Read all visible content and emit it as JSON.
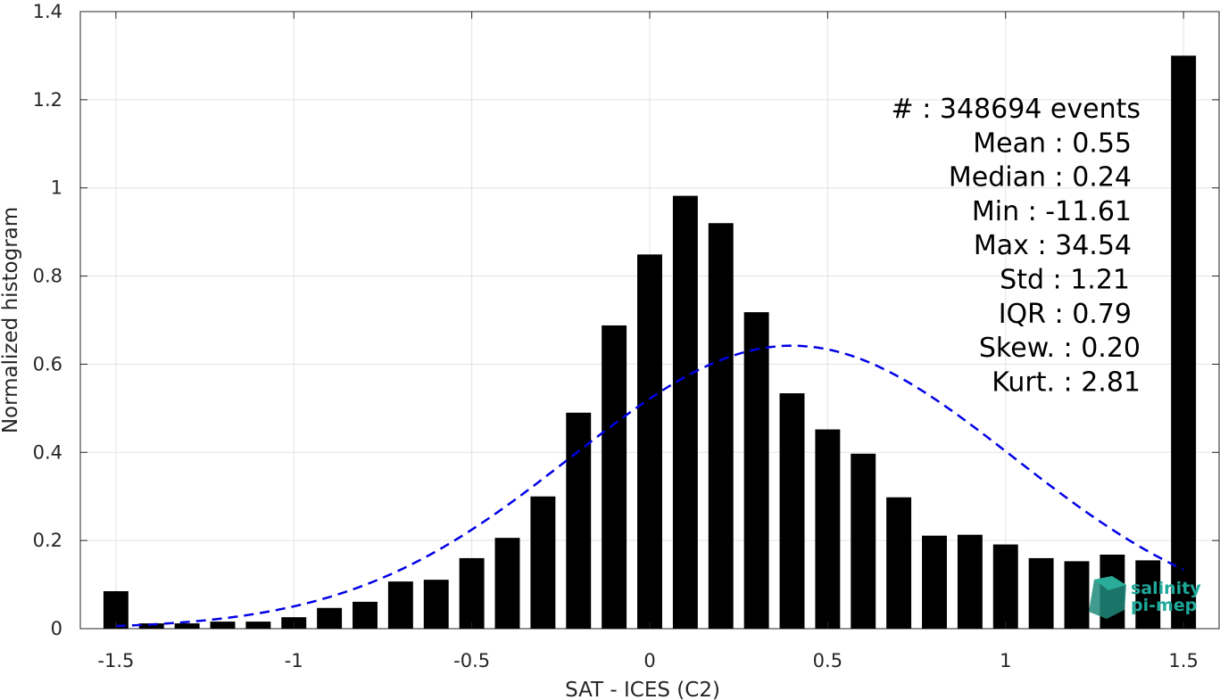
{
  "chart_data": {
    "type": "bar",
    "xlabel": "SAT - ICES (C2)",
    "ylabel": "Normalized histogram",
    "xlim": [
      -1.6,
      1.6
    ],
    "ylim": [
      0,
      1.4
    ],
    "xticks": [
      -1.5,
      -1,
      -0.5,
      0,
      0.5,
      1,
      1.5
    ],
    "xtick_labels": [
      "-1.5",
      "-1",
      "-0.5",
      "0",
      "0.5",
      "1",
      "1.5"
    ],
    "yticks": [
      0,
      0.2,
      0.4,
      0.6,
      0.8,
      1,
      1.2,
      1.4
    ],
    "ytick_labels": [
      "0",
      "0.2",
      "0.4",
      "0.6",
      "0.8",
      "1",
      "1.2",
      "1.4"
    ],
    "grid": true,
    "bar_width": 0.07,
    "bar_color": "#000000",
    "bins": [
      {
        "x": -1.5,
        "y": 0.085
      },
      {
        "x": -1.4,
        "y": 0.012
      },
      {
        "x": -1.3,
        "y": 0.012
      },
      {
        "x": -1.2,
        "y": 0.016
      },
      {
        "x": -1.1,
        "y": 0.016
      },
      {
        "x": -1.0,
        "y": 0.026
      },
      {
        "x": -0.9,
        "y": 0.047
      },
      {
        "x": -0.8,
        "y": 0.061
      },
      {
        "x": -0.7,
        "y": 0.107
      },
      {
        "x": -0.6,
        "y": 0.111
      },
      {
        "x": -0.5,
        "y": 0.16
      },
      {
        "x": -0.4,
        "y": 0.206
      },
      {
        "x": -0.3,
        "y": 0.3
      },
      {
        "x": -0.2,
        "y": 0.49
      },
      {
        "x": -0.1,
        "y": 0.688
      },
      {
        "x": 0.0,
        "y": 0.849
      },
      {
        "x": 0.1,
        "y": 0.982
      },
      {
        "x": 0.2,
        "y": 0.92
      },
      {
        "x": 0.3,
        "y": 0.718
      },
      {
        "x": 0.4,
        "y": 0.534
      },
      {
        "x": 0.5,
        "y": 0.452
      },
      {
        "x": 0.6,
        "y": 0.397
      },
      {
        "x": 0.7,
        "y": 0.298
      },
      {
        "x": 0.8,
        "y": 0.211
      },
      {
        "x": 0.9,
        "y": 0.213
      },
      {
        "x": 1.0,
        "y": 0.191
      },
      {
        "x": 1.1,
        "y": 0.16
      },
      {
        "x": 1.2,
        "y": 0.153
      },
      {
        "x": 1.3,
        "y": 0.168
      },
      {
        "x": 1.4,
        "y": 0.155
      },
      {
        "x": 1.5,
        "y": 1.3
      }
    ],
    "fit_curve": {
      "style": "dashed",
      "color": "#0000e6",
      "mean": 0.4,
      "std": 0.621,
      "peak": 0.642,
      "x_range": [
        -1.5,
        1.5
      ]
    },
    "stats_lines": [
      "#  : 348694 events",
      "Mean : 0.55",
      "Median : 0.24",
      "Min : -11.61",
      "Max : 34.54",
      "Std : 1.21",
      "IQR : 0.79",
      "Skew. : 0.20",
      "Kurt. : 2.81"
    ]
  },
  "logo": {
    "line1": "salinity",
    "line2": "pi-mep"
  }
}
